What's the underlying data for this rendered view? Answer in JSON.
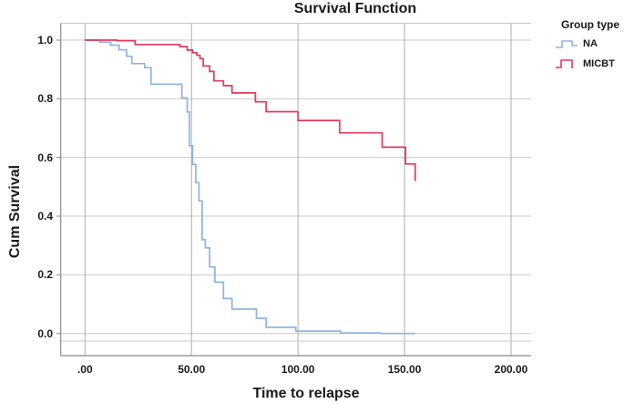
{
  "title": "Survival Function",
  "chart_data": {
    "type": "line",
    "subtype": "kaplan-meier-step-survival",
    "title": "Survival Function",
    "xlabel": "Time to relapse",
    "ylabel": "Cum Survival",
    "xlim": [
      0,
      200
    ],
    "ylim": [
      0.0,
      1.0
    ],
    "grid": true,
    "xticks": {
      "values": [
        0,
        50,
        100,
        150,
        200
      ],
      "labels": [
        ".00",
        "50.00",
        "100.00",
        "150.00",
        "200.00"
      ]
    },
    "yticks": {
      "values": [
        0.0,
        0.2,
        0.4,
        0.6,
        0.8,
        1.0
      ],
      "labels": [
        "0.0",
        "0.2",
        "0.4",
        "0.6",
        "0.8",
        "1.0"
      ]
    },
    "legend": {
      "title": "Group type",
      "position": "outside-top-right",
      "items": [
        {
          "label": "NA",
          "color": "#8FB3E3"
        },
        {
          "label": "MICBT",
          "color": "#E03A5F"
        }
      ]
    },
    "series": [
      {
        "name": "NA",
        "color": "#8FB3E3",
        "points": [
          [
            0,
            1.0
          ],
          [
            7,
            0.993
          ],
          [
            12,
            0.983
          ],
          [
            16,
            0.967
          ],
          [
            19.5,
            0.945
          ],
          [
            22,
            0.92
          ],
          [
            28,
            0.906
          ],
          [
            31,
            0.85
          ],
          [
            45.5,
            0.803
          ],
          [
            48,
            0.755
          ],
          [
            49,
            0.64
          ],
          [
            50.5,
            0.576
          ],
          [
            52,
            0.514
          ],
          [
            53.5,
            0.452
          ],
          [
            55,
            0.32
          ],
          [
            56.5,
            0.292
          ],
          [
            58.5,
            0.227
          ],
          [
            61,
            0.175
          ],
          [
            65,
            0.119
          ],
          [
            69,
            0.083
          ],
          [
            80.5,
            0.052
          ],
          [
            85,
            0.021
          ],
          [
            99,
            0.008
          ],
          [
            120,
            0.002
          ],
          [
            139,
            0.0
          ],
          [
            155,
            0.0
          ]
        ]
      },
      {
        "name": "MICBT",
        "color": "#E03A5F",
        "points": [
          [
            0,
            1.0
          ],
          [
            15,
            0.998
          ],
          [
            23.5,
            0.985
          ],
          [
            44.5,
            0.978
          ],
          [
            48,
            0.966
          ],
          [
            50.5,
            0.957
          ],
          [
            52.5,
            0.948
          ],
          [
            54,
            0.937
          ],
          [
            55.5,
            0.912
          ],
          [
            58.5,
            0.893
          ],
          [
            60.5,
            0.861
          ],
          [
            65,
            0.845
          ],
          [
            69,
            0.82
          ],
          [
            80,
            0.79
          ],
          [
            85,
            0.756
          ],
          [
            100,
            0.726
          ],
          [
            119.5,
            0.684
          ],
          [
            139.5,
            0.635
          ],
          [
            150.5,
            0.578
          ],
          [
            155,
            0.52
          ]
        ]
      }
    ]
  },
  "colors": {
    "background": "#FFFFFF",
    "frame": "#8A8A8A",
    "grid_horizontal": "#CACACA",
    "grid_vertical": "#ADADAD",
    "inner_baseline": "#CACACA",
    "top_frame": "#C6C6C6",
    "text": "#1A1A1A",
    "na_curve": "#8FB3E3",
    "micbt_curve": "#E03A5F"
  }
}
